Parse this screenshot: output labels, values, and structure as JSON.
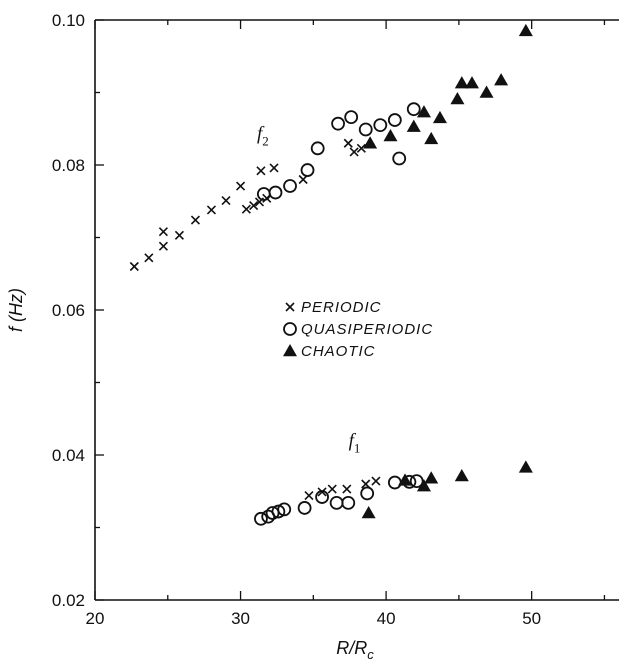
{
  "chart_data": {
    "type": "scatter",
    "xlabel": "R/R_c",
    "ylabel": "f (Hz)",
    "xlim": [
      20,
      56
    ],
    "ylim": [
      0.02,
      0.1
    ],
    "xticks": [
      20,
      30,
      40,
      50
    ],
    "yticks": [
      0.02,
      0.04,
      0.06,
      0.08,
      0.1
    ],
    "xtick_labels": [
      "20",
      "30",
      "40",
      "50"
    ],
    "ytick_labels": [
      "0.02",
      "0.04",
      "0.06",
      "0.08",
      "0.10"
    ],
    "grid": false,
    "legend_position": "center",
    "annotations": [
      {
        "text": "f",
        "subscript": "2",
        "x": 32.5,
        "y": 0.0835
      },
      {
        "text": "f",
        "subscript": "1",
        "x": 38.8,
        "y": 0.0412
      }
    ],
    "series": [
      {
        "name": "PERIODIC",
        "marker": "x",
        "points": [
          [
            22.7,
            0.066
          ],
          [
            23.7,
            0.0672
          ],
          [
            24.7,
            0.0688
          ],
          [
            24.7,
            0.0708
          ],
          [
            25.8,
            0.0703
          ],
          [
            26.9,
            0.0724
          ],
          [
            28.0,
            0.0738
          ],
          [
            29.0,
            0.0751
          ],
          [
            30.0,
            0.0771
          ],
          [
            30.4,
            0.0739
          ],
          [
            30.9,
            0.0744
          ],
          [
            31.3,
            0.0749
          ],
          [
            31.4,
            0.0792
          ],
          [
            31.8,
            0.0754
          ],
          [
            32.3,
            0.0796
          ],
          [
            34.3,
            0.078
          ],
          [
            37.4,
            0.083
          ],
          [
            37.8,
            0.0818
          ],
          [
            38.3,
            0.0823
          ],
          [
            34.7,
            0.0344
          ],
          [
            35.6,
            0.0349
          ],
          [
            36.3,
            0.0353
          ],
          [
            37.3,
            0.0353
          ],
          [
            38.6,
            0.036
          ],
          [
            39.3,
            0.0364
          ]
        ]
      },
      {
        "name": "QUASIPERIODIC",
        "marker": "circle-open",
        "points": [
          [
            31.6,
            0.076
          ],
          [
            32.4,
            0.0762
          ],
          [
            33.4,
            0.0771
          ],
          [
            34.6,
            0.0793
          ],
          [
            35.3,
            0.0823
          ],
          [
            36.7,
            0.0857
          ],
          [
            37.6,
            0.0866
          ],
          [
            38.6,
            0.0849
          ],
          [
            39.6,
            0.0855
          ],
          [
            40.6,
            0.0862
          ],
          [
            40.9,
            0.0809
          ],
          [
            41.9,
            0.0877
          ],
          [
            31.4,
            0.0312
          ],
          [
            31.9,
            0.0315
          ],
          [
            32.2,
            0.032
          ],
          [
            32.6,
            0.0322
          ],
          [
            33.0,
            0.0325
          ],
          [
            34.4,
            0.0327
          ],
          [
            35.6,
            0.0342
          ],
          [
            36.6,
            0.0334
          ],
          [
            37.4,
            0.0334
          ],
          [
            38.7,
            0.0347
          ],
          [
            40.6,
            0.0362
          ],
          [
            41.6,
            0.0363
          ],
          [
            42.1,
            0.0364
          ]
        ]
      },
      {
        "name": "CHAOTIC",
        "marker": "triangle-filled",
        "points": [
          [
            38.9,
            0.083
          ],
          [
            40.3,
            0.084
          ],
          [
            41.9,
            0.0853
          ],
          [
            42.6,
            0.0873
          ],
          [
            43.1,
            0.0836
          ],
          [
            43.7,
            0.0865
          ],
          [
            44.9,
            0.0891
          ],
          [
            45.2,
            0.0913
          ],
          [
            45.9,
            0.0913
          ],
          [
            46.9,
            0.09
          ],
          [
            47.9,
            0.0917
          ],
          [
            49.6,
            0.0985
          ],
          [
            38.8,
            0.032
          ],
          [
            41.3,
            0.0365
          ],
          [
            42.6,
            0.0357
          ],
          [
            43.1,
            0.0368
          ],
          [
            45.2,
            0.0371
          ],
          [
            49.6,
            0.0383
          ]
        ]
      }
    ]
  }
}
